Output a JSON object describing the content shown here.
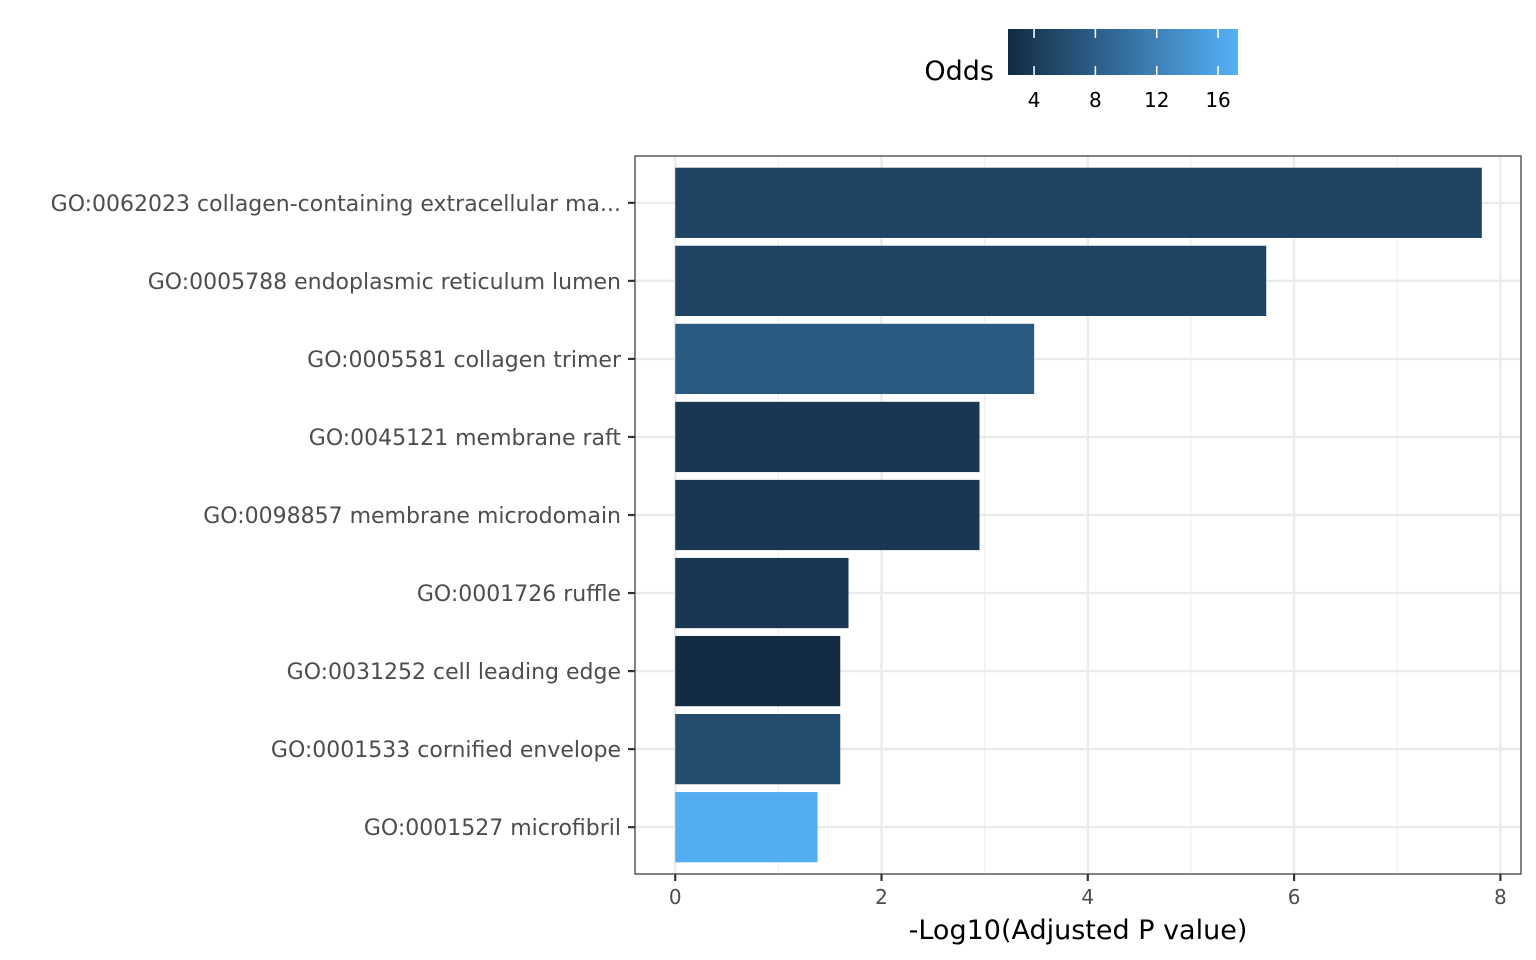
{
  "chart_data": {
    "type": "bar",
    "orientation": "horizontal",
    "categories": [
      "GO:0062023 collagen-containing extracellular ma...",
      "GO:0005788 endoplasmic reticulum lumen",
      "GO:0005581 collagen trimer",
      "GO:0045121 membrane raft",
      "GO:0098857 membrane microdomain",
      "GO:0001726 ruffle",
      "GO:0031252 cell leading edge",
      "GO:0001533 cornified envelope",
      "GO:0001527 microfibril"
    ],
    "values": [
      7.82,
      5.73,
      3.48,
      2.95,
      2.95,
      1.68,
      1.6,
      1.6,
      1.38
    ],
    "odds": [
      5.0,
      5.0,
      7.5,
      3.6,
      3.6,
      3.6,
      2.3,
      6.0,
      16.8
    ],
    "xlabel": "-Log10(Adjusted P value)",
    "ylabel": "",
    "xlim": [
      -0.39,
      8.2
    ],
    "xticks": [
      0,
      2,
      4,
      6,
      8
    ],
    "grid": true,
    "legend": {
      "title": "Odds",
      "position": "top",
      "type": "colorbar",
      "range": [
        2.3,
        17.3
      ],
      "ticks": [
        4,
        8,
        12,
        16
      ],
      "color_low": "#132b43",
      "color_high": "#56b1f7"
    }
  }
}
